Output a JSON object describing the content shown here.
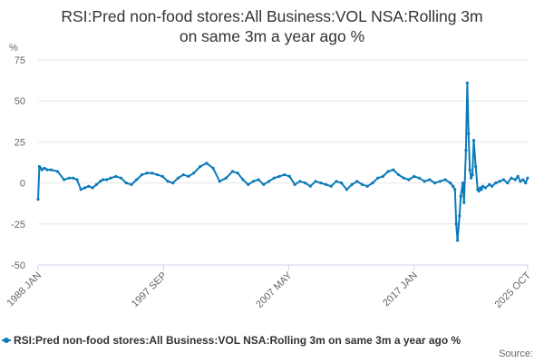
{
  "chart_data": {
    "type": "line",
    "title_lines": [
      "RSI:Pred non-food stores:All Business:VOL NSA:Rolling 3m",
      "on same 3m a year ago %"
    ],
    "ylabel": "%",
    "ylim": [
      -50,
      75
    ],
    "yticks": [
      "75",
      "50",
      "25",
      "0",
      "-25",
      "-50"
    ],
    "ytick_values": [
      75,
      50,
      25,
      0,
      -25,
      -50
    ],
    "xlim": [
      1988.0,
      2025.83
    ],
    "xticks": [
      {
        "label": "1988 JAN",
        "value": 1988.0
      },
      {
        "label": "1997 SEP",
        "value": 1997.67
      },
      {
        "label": "2007 MAY",
        "value": 2007.33
      },
      {
        "label": "2017 JAN",
        "value": 2017.0
      },
      {
        "label": "2025 OCT",
        "value": 2025.75
      }
    ],
    "grid": true,
    "legend_position": "bottom",
    "series": [
      {
        "name": "RSI:Pred non-food stores:All Business:VOL NSA:Rolling 3m on same 3m a year ago %",
        "color": "#0c7bb8",
        "x": [
          1988.0,
          1988.1,
          1988.2,
          1988.3,
          1988.5,
          1988.7,
          1989.0,
          1989.5,
          1990.0,
          1990.4,
          1990.7,
          1991.0,
          1991.3,
          1991.6,
          1991.9,
          1992.2,
          1992.5,
          1992.8,
          1993.0,
          1993.3,
          1993.6,
          1994.0,
          1994.4,
          1994.8,
          1995.2,
          1995.6,
          1996.0,
          1996.4,
          1996.8,
          1997.2,
          1997.6,
          1998.0,
          1998.4,
          1998.8,
          1999.2,
          1999.6,
          2000.0,
          2000.5,
          2001.0,
          2001.5,
          2002.0,
          2002.5,
          2003.0,
          2003.4,
          2003.8,
          2004.2,
          2004.6,
          2005.0,
          2005.4,
          2005.8,
          2006.2,
          2006.6,
          2007.0,
          2007.4,
          2007.8,
          2008.2,
          2008.6,
          2009.0,
          2009.4,
          2009.8,
          2010.2,
          2010.6,
          2011.0,
          2011.4,
          2011.8,
          2012.2,
          2012.6,
          2013.0,
          2013.4,
          2013.8,
          2014.2,
          2014.6,
          2015.0,
          2015.4,
          2015.8,
          2016.2,
          2016.6,
          2017.0,
          2017.4,
          2017.8,
          2018.2,
          2018.6,
          2019.0,
          2019.4,
          2019.8,
          2020.0,
          2020.15,
          2020.25,
          2020.35,
          2020.5,
          2020.6,
          2020.75,
          2020.85,
          2021.0,
          2021.1,
          2021.2,
          2021.3,
          2021.4,
          2021.5,
          2021.6,
          2021.75,
          2021.9,
          2022.0,
          2022.1,
          2022.2,
          2022.3,
          2022.5,
          2022.8,
          2023.0,
          2023.3,
          2023.6,
          2023.9,
          2024.2,
          2024.5,
          2024.8,
          2025.0,
          2025.2,
          2025.4,
          2025.6,
          2025.75
        ],
        "values": [
          -10,
          10,
          9,
          8,
          9,
          8,
          8,
          7,
          2,
          3,
          3,
          2,
          -4,
          -3,
          -2,
          -3,
          -1,
          1,
          2,
          2,
          3,
          4,
          3,
          0,
          -1,
          2,
          5,
          6,
          6,
          5,
          4,
          1,
          0,
          3,
          5,
          4,
          6,
          10,
          12,
          9,
          1,
          3,
          7,
          6,
          2,
          -1,
          1,
          2,
          -1,
          1,
          3,
          4,
          5,
          4,
          -1,
          1,
          0,
          -2,
          1,
          0,
          -1,
          -2,
          1,
          0,
          -4,
          -1,
          1,
          -1,
          -2,
          0,
          3,
          4,
          7,
          8,
          5,
          3,
          2,
          4,
          3,
          1,
          2,
          0,
          1,
          2,
          0,
          -2,
          -4,
          -25,
          -35,
          -20,
          -8,
          0,
          -12,
          20,
          61,
          30,
          8,
          3,
          5,
          26,
          10,
          -4,
          -5,
          -3,
          -4,
          -2,
          -3,
          -1,
          -2,
          0,
          1,
          2,
          0,
          3,
          2,
          4,
          1,
          2,
          0,
          3
        ]
      }
    ]
  },
  "legend": {
    "label": "RSI:Pred non-food stores:All Business:VOL NSA:Rolling 3m on same 3m a year ago %"
  },
  "footer": {
    "source_label": "Source:"
  }
}
